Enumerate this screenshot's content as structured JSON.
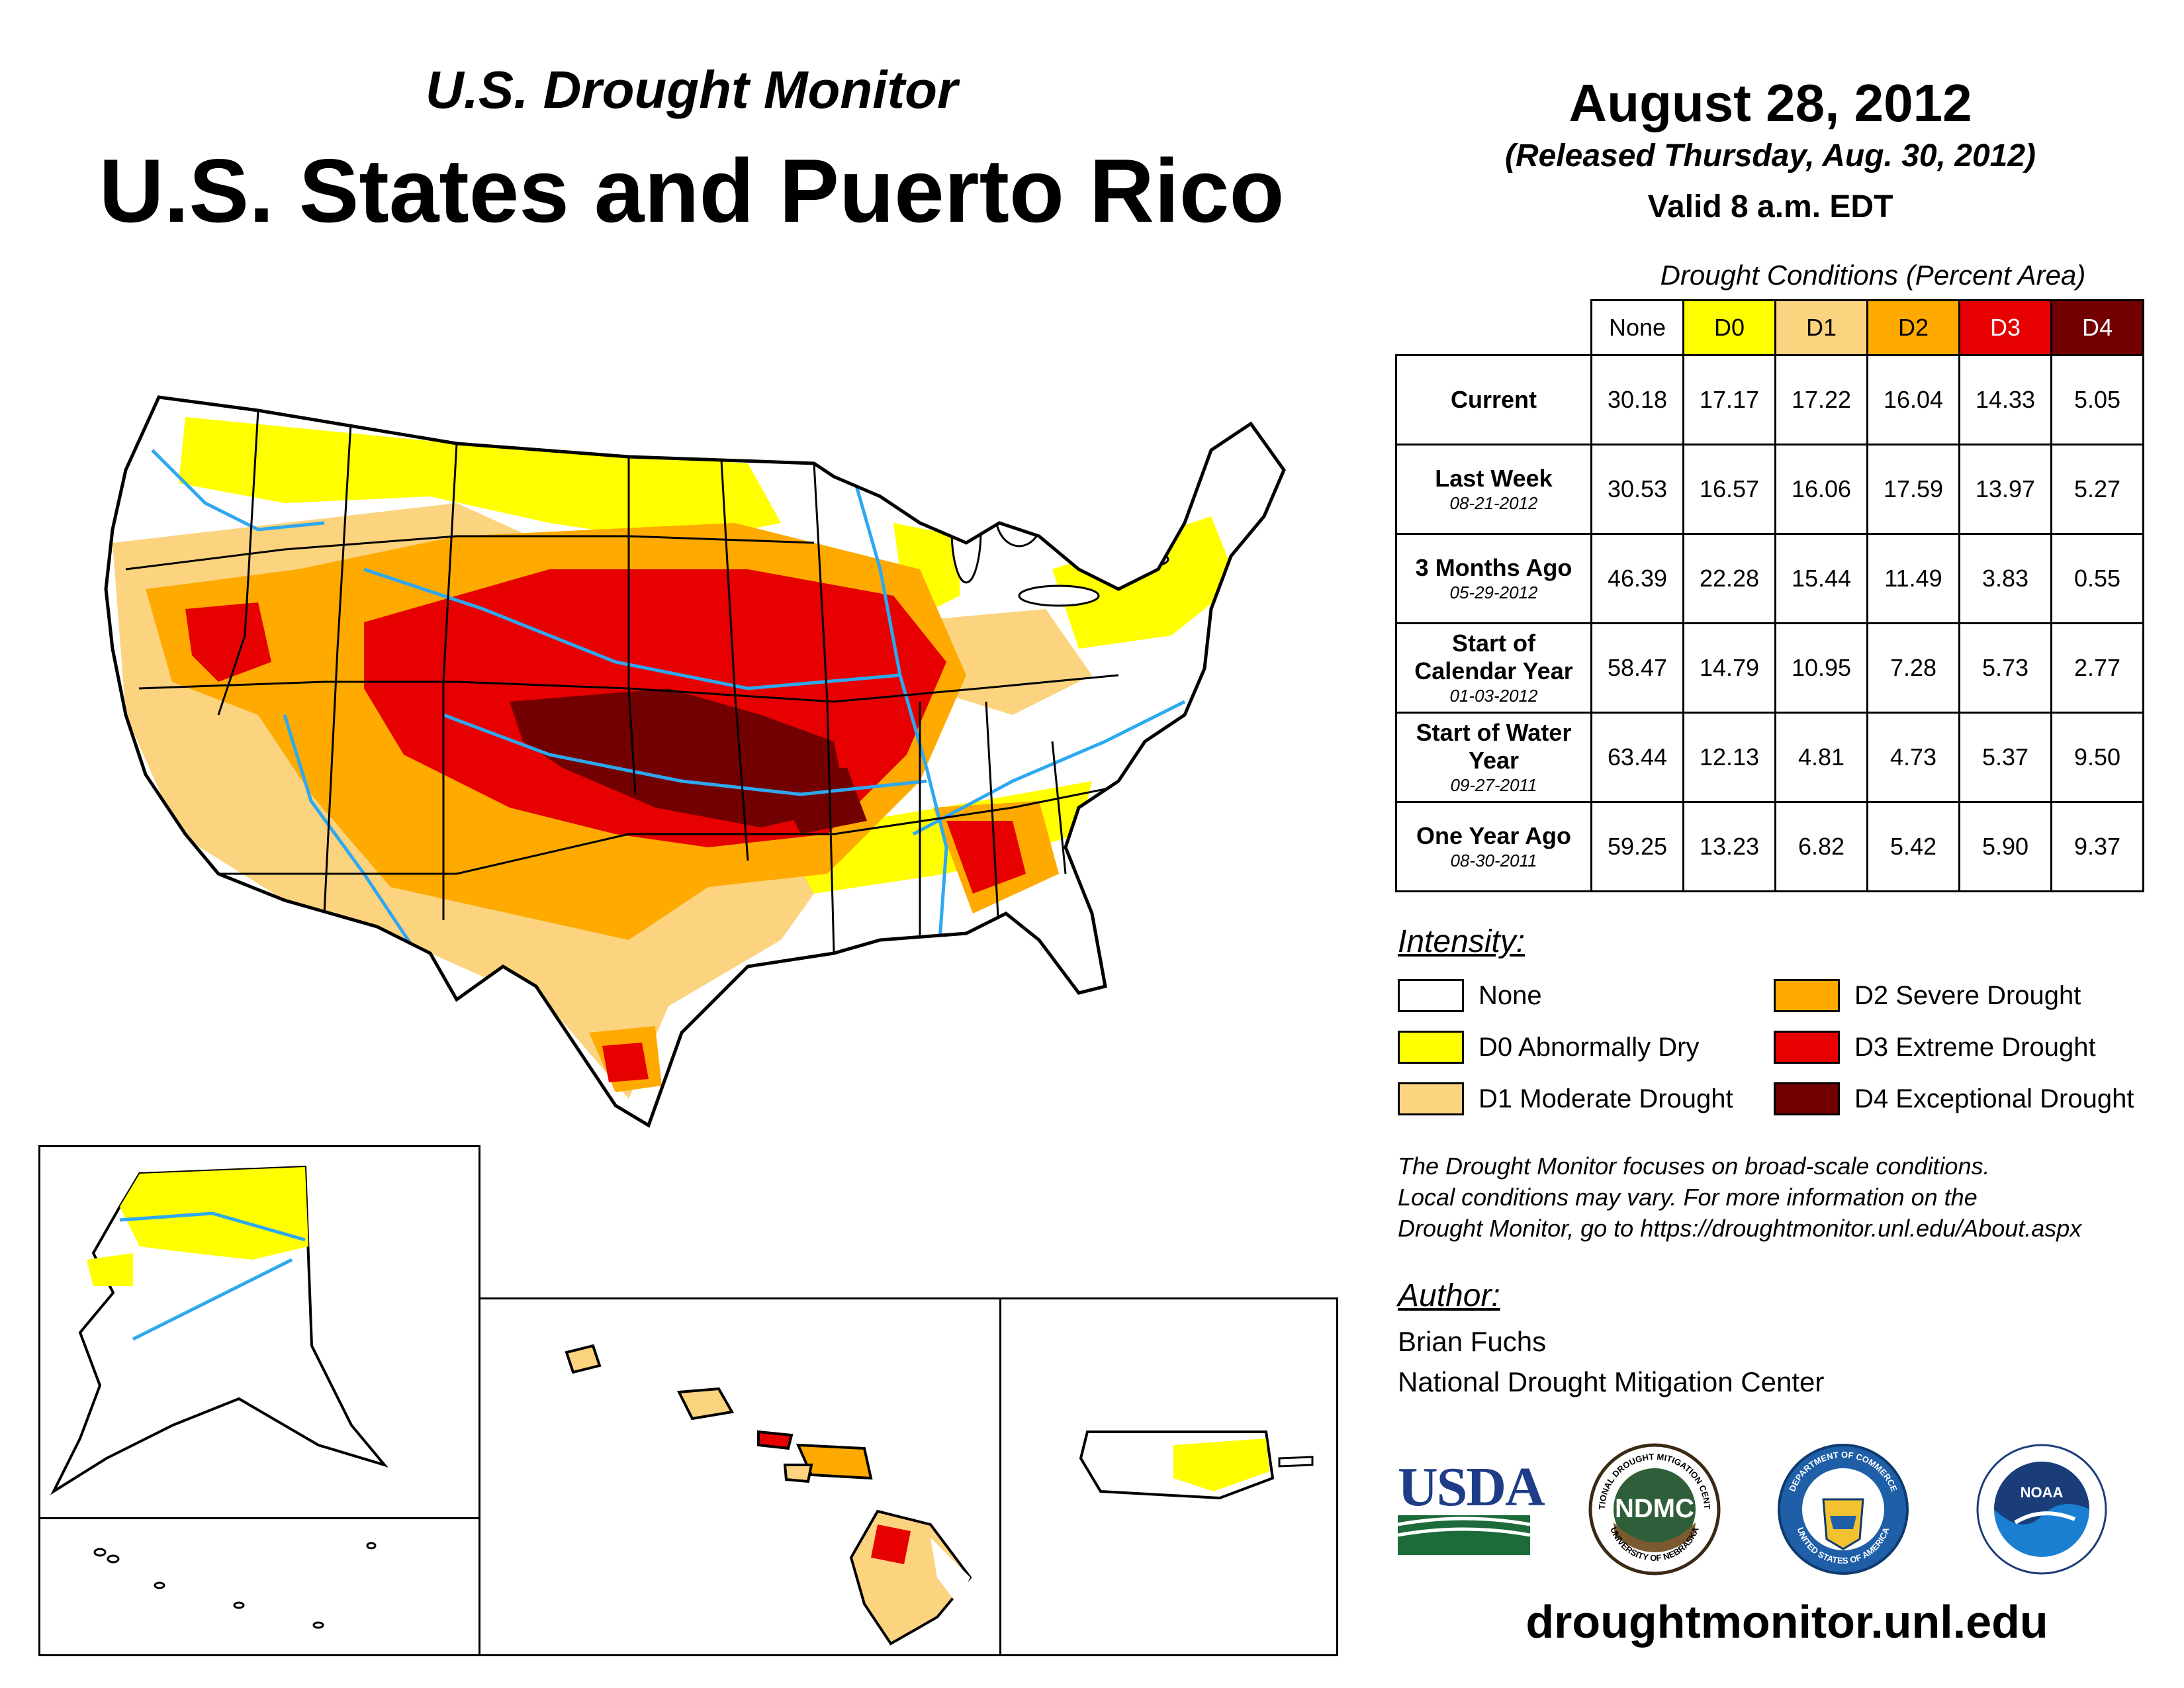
{
  "header": {
    "subtitle": "U.S. Drought Monitor",
    "title": "U.S. States and Puerto Rico",
    "date": "August 28, 2012",
    "released": "(Released Thursday, Aug. 30, 2012)",
    "valid": "Valid 8 a.m. EDT"
  },
  "table": {
    "caption": "Drought Conditions (Percent Area)",
    "columns": [
      "None",
      "D0",
      "D1",
      "D2",
      "D3",
      "D4"
    ],
    "column_colors": [
      "#ffffff",
      "#ffff00",
      "#fcd37f",
      "#ffaa00",
      "#e60000",
      "#730000"
    ],
    "rows": [
      {
        "label": "Current",
        "date": "",
        "values": [
          "30.18",
          "17.17",
          "17.22",
          "16.04",
          "14.33",
          "5.05"
        ]
      },
      {
        "label": "Last Week",
        "date": "08-21-2012",
        "values": [
          "30.53",
          "16.57",
          "16.06",
          "17.59",
          "13.97",
          "5.27"
        ]
      },
      {
        "label": "3 Months Ago",
        "date": "05-29-2012",
        "values": [
          "46.39",
          "22.28",
          "15.44",
          "11.49",
          "3.83",
          "0.55"
        ]
      },
      {
        "label": "Start of Calendar Year",
        "date": "01-03-2012",
        "values": [
          "58.47",
          "14.79",
          "10.95",
          "7.28",
          "5.73",
          "2.77"
        ]
      },
      {
        "label": "Start of Water Year",
        "date": "09-27-2011",
        "values": [
          "63.44",
          "12.13",
          "4.81",
          "4.73",
          "5.37",
          "9.50"
        ]
      },
      {
        "label": "One Year Ago",
        "date": "08-30-2011",
        "values": [
          "59.25",
          "13.23",
          "6.82",
          "5.42",
          "5.90",
          "9.37"
        ]
      }
    ]
  },
  "intensity": {
    "title": "Intensity:",
    "items": [
      {
        "label": "None",
        "color": "#ffffff"
      },
      {
        "label": "D0 Abnormally Dry",
        "color": "#ffff00"
      },
      {
        "label": "D1 Moderate Drought",
        "color": "#fcd37f"
      },
      {
        "label": "D2 Severe Drought",
        "color": "#ffaa00"
      },
      {
        "label": "D3 Extreme Drought",
        "color": "#e60000"
      },
      {
        "label": "D4 Exceptional Drought",
        "color": "#730000"
      }
    ]
  },
  "note": {
    "line1": "The Drought Monitor focuses on broad-scale conditions.",
    "line2": "Local conditions may vary. For more information on the",
    "line3": "Drought Monitor, go to https://droughtmonitor.unl.edu/About.aspx"
  },
  "author": {
    "title": "Author:",
    "name": "Brian Fuchs",
    "org": "National Drought Mitigation Center"
  },
  "logos": {
    "usda": "USDA",
    "ndmc": "NDMC",
    "ndmc_ring_top": "NATIONAL DROUGHT MITIGATION CENTER",
    "ndmc_ring_bottom": "UNIVERSITY OF NEBRASKA",
    "doc_ring_top": "DEPARTMENT OF COMMERCE",
    "doc_ring_bottom": "UNITED STATES OF AMERICA",
    "noaa": "NOAA"
  },
  "url": "droughtmonitor.unl.edu"
}
